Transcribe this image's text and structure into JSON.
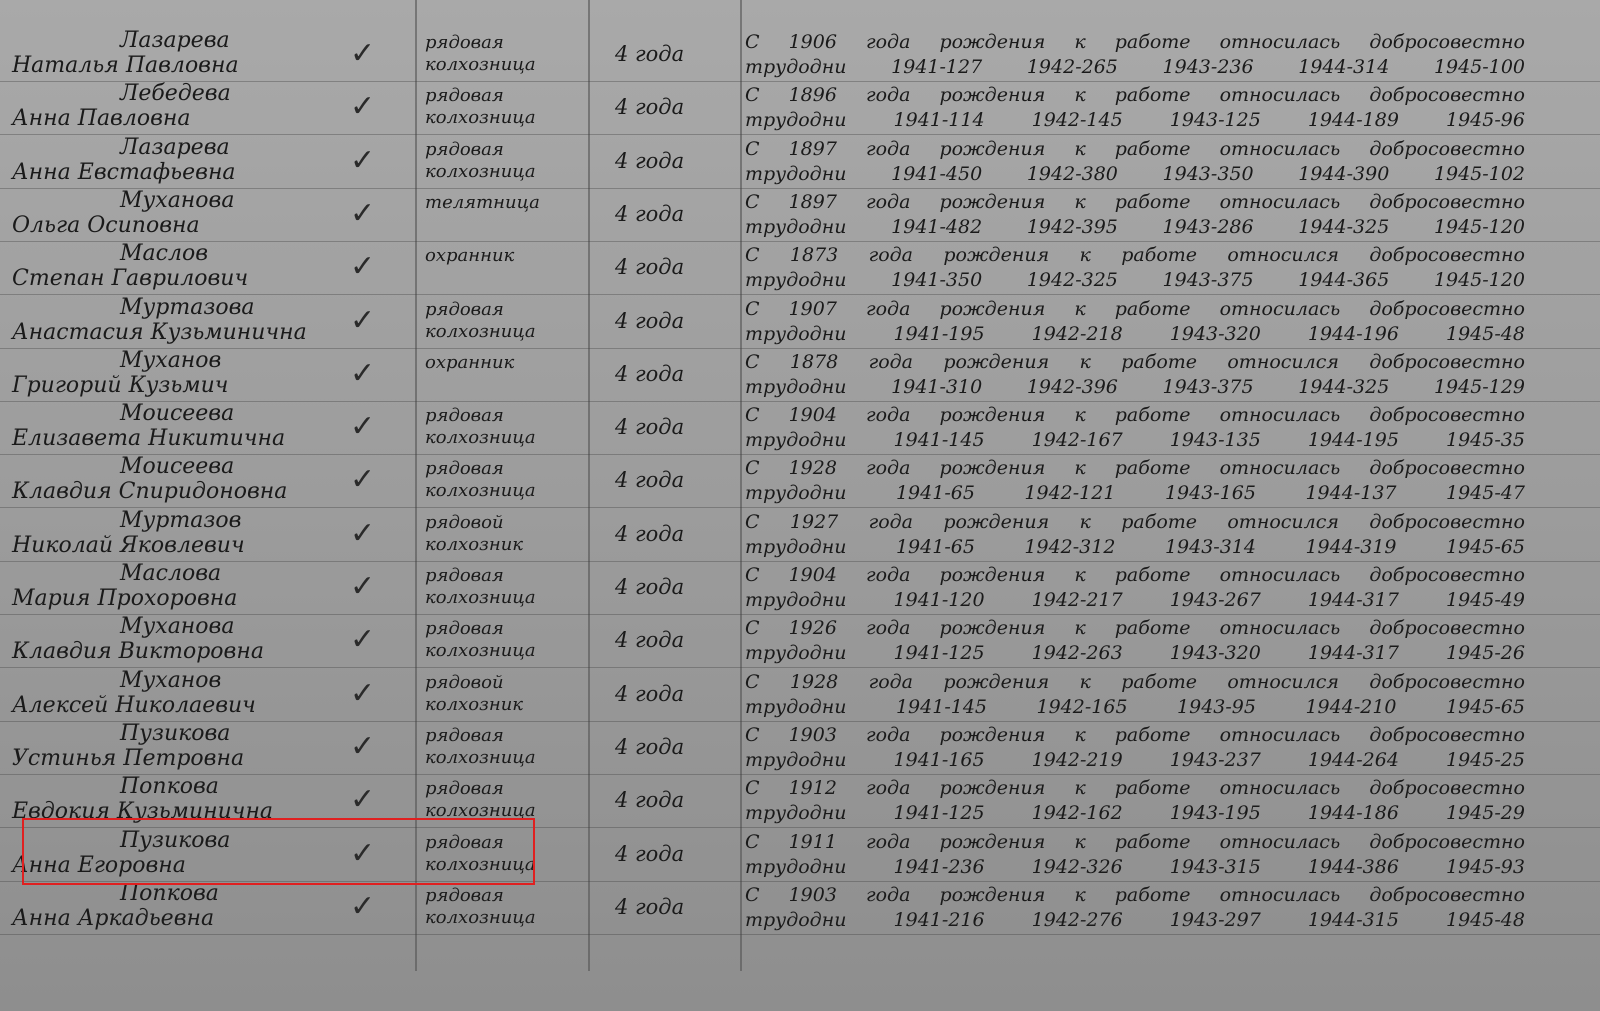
{
  "rows": [
    {
      "surname": "Лазарева",
      "name": "Наталья Павловна",
      "position": [
        "рядовая",
        "колхозница"
      ],
      "term": "4 года",
      "description": "С 1906 года рождения к работе относилась добросовестно",
      "workdays_label": "трудодни",
      "workdays": [
        "1941-127",
        "1942-265",
        "1943-236",
        "1944-314",
        "1945-100"
      ]
    },
    {
      "surname": "Лебедева",
      "name": "Анна Павловна",
      "position": [
        "рядовая",
        "колхозница"
      ],
      "term": "4 года",
      "description": "С 1896 года рождения к работе относилась добросовестно",
      "workdays_label": "трудодни",
      "workdays": [
        "1941-114",
        "1942-145",
        "1943-125",
        "1944-189",
        "1945-96"
      ]
    },
    {
      "surname": "Лазарева",
      "name": "Анна Евстафьевна",
      "position": [
        "рядовая",
        "колхозница"
      ],
      "term": "4 года",
      "description": "С 1897 года рождения к работе относилась добросовестно",
      "workdays_label": "трудодни",
      "workdays": [
        "1941-450",
        "1942-380",
        "1943-350",
        "1944-390",
        "1945-102"
      ]
    },
    {
      "surname": "Муханова",
      "name": "Ольга Осиповна",
      "position": [
        "телятница"
      ],
      "term": "4 года",
      "description": "С 1897 года рождения к работе относилась добросовестно",
      "workdays_label": "трудодни",
      "workdays": [
        "1941-482",
        "1942-395",
        "1943-286",
        "1944-325",
        "1945-120"
      ]
    },
    {
      "surname": "Маслов",
      "name": "Степан Гаврилович",
      "position": [
        "охранник"
      ],
      "term": "4 года",
      "description": "С 1873 года рождения к работе относился добросовестно",
      "workdays_label": "трудодни",
      "workdays": [
        "1941-350",
        "1942-325",
        "1943-375",
        "1944-365",
        "1945-120"
      ]
    },
    {
      "surname": "Муртазова",
      "name": "Анастасия Кузьминична",
      "position": [
        "рядовая",
        "колхозница"
      ],
      "term": "4 года",
      "description": "С 1907 года рождения к работе относилась добросовестно",
      "workdays_label": "трудодни",
      "workdays": [
        "1941-195",
        "1942-218",
        "1943-320",
        "1944-196",
        "1945-48"
      ]
    },
    {
      "surname": "Муханов",
      "name": "Григорий Кузьмич",
      "position": [
        "охранник"
      ],
      "term": "4 года",
      "description": "С 1878 года рождения к работе относился добросовестно",
      "workdays_label": "трудодни",
      "workdays": [
        "1941-310",
        "1942-396",
        "1943-375",
        "1944-325",
        "1945-129"
      ]
    },
    {
      "surname": "Моисеева",
      "name": "Елизавета Никитична",
      "position": [
        "рядовая",
        "колхозница"
      ],
      "term": "4 года",
      "description": "С 1904 года рождения к работе относилась добросовестно",
      "workdays_label": "трудодни",
      "workdays": [
        "1941-145",
        "1942-167",
        "1943-135",
        "1944-195",
        "1945-35"
      ]
    },
    {
      "surname": "Моисеева",
      "name": "Клавдия Спиридоновна",
      "position": [
        "рядовая",
        "колхозница"
      ],
      "term": "4 года",
      "description": "С 1928 года рождения к работе относилась добросовестно",
      "workdays_label": "трудодни",
      "workdays": [
        "1941-65",
        "1942-121",
        "1943-165",
        "1944-137",
        "1945-47"
      ]
    },
    {
      "surname": "Муртазов",
      "name": "Николай Яковлевич",
      "position": [
        "рядовой",
        "колхозник"
      ],
      "term": "4 года",
      "description": "С 1927 года рождения к работе относился добросовестно",
      "workdays_label": "трудодни",
      "workdays": [
        "1941-65",
        "1942-312",
        "1943-314",
        "1944-319",
        "1945-65"
      ]
    },
    {
      "surname": "Маслова",
      "name": "Мария Прохоровна",
      "position": [
        "рядовая",
        "колхозница"
      ],
      "term": "4 года",
      "description": "С 1904 года рождения к работе относилась добросовестно",
      "workdays_label": "трудодни",
      "workdays": [
        "1941-120",
        "1942-217",
        "1943-267",
        "1944-317",
        "1945-49"
      ]
    },
    {
      "surname": "Муханова",
      "name": "Клавдия Викторовна",
      "position": [
        "рядовая",
        "колхозница"
      ],
      "term": "4 года",
      "description": "С 1926 года рождения к работе относилась добросовестно",
      "workdays_label": "трудодни",
      "workdays": [
        "1941-125",
        "1942-263",
        "1943-320",
        "1944-317",
        "1945-26"
      ]
    },
    {
      "surname": "Муханов",
      "name": "Алексей Николаевич",
      "position": [
        "рядовой",
        "колхозник"
      ],
      "term": "4 года",
      "description": "С 1928 года рождения к работе относился добросовестно",
      "workdays_label": "трудодни",
      "workdays": [
        "1941-145",
        "1942-165",
        "1943-95",
        "1944-210",
        "1945-65"
      ]
    },
    {
      "surname": "Пузикова",
      "name": "Устинья Петровна",
      "position": [
        "рядовая",
        "колхозница"
      ],
      "term": "4 года",
      "description": "С 1903 года рождения к работе относилась добросовестно",
      "workdays_label": "трудодни",
      "workdays": [
        "1941-165",
        "1942-219",
        "1943-237",
        "1944-264",
        "1945-25"
      ]
    },
    {
      "surname": "Попкова",
      "name": "Евдокия Кузьминична",
      "position": [
        "рядовая",
        "колхозница"
      ],
      "term": "4 года",
      "description": "С 1912 года рождения к работе относилась добросовестно",
      "workdays_label": "трудодни",
      "workdays": [
        "1941-125",
        "1942-162",
        "1943-195",
        "1944-186",
        "1945-29"
      ]
    },
    {
      "surname": "Пузикова",
      "name": "Анна Егоровна",
      "position": [
        "рядовая",
        "колхозница"
      ],
      "term": "4 года",
      "description": "С 1911 года рождения к работе относилась добросовестно",
      "workdays_label": "трудодни",
      "workdays": [
        "1941-236",
        "1942-326",
        "1943-315",
        "1944-386",
        "1945-93"
      ]
    },
    {
      "surname": "Попкова",
      "name": "Анна Аркадьевна",
      "position": [
        "рядовая",
        "колхозница"
      ],
      "term": "4 года",
      "description": "С 1903 года рождения к работе относилась добросовестно",
      "workdays_label": "трудодни",
      "workdays": [
        "1941-216",
        "1942-276",
        "1943-297",
        "1944-315",
        "1945-48"
      ]
    }
  ]
}
